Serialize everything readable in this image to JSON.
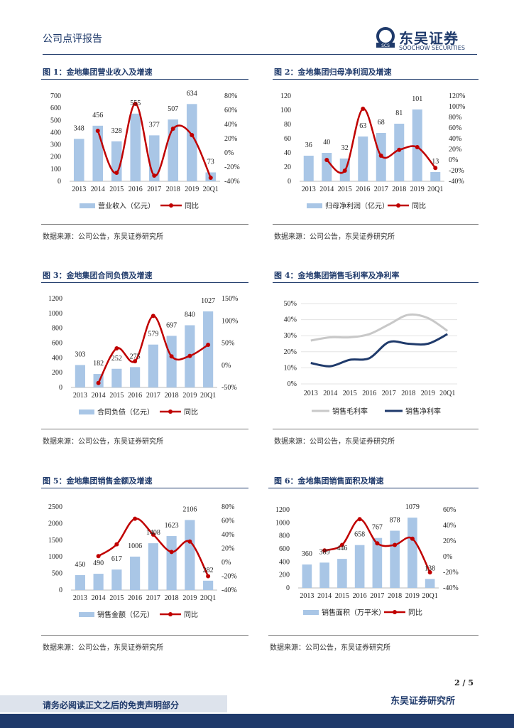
{
  "header": {
    "left": "公司点评报告",
    "logo_cn": "东吴证券",
    "logo_en": "SOOCHOW SECURITIES",
    "logo_mark": "SCS"
  },
  "colors": {
    "bar": "#a9c6e6",
    "line": "#c00000",
    "gross": "#c8c8c8",
    "net": "#1f3a6b",
    "brand": "#1f3a6b"
  },
  "footer": {
    "page": "2 / 5",
    "disclaimer": "请务必阅读正文之后的免责声明部分",
    "company": "东吴证券研究所"
  },
  "figures": [
    {
      "title": "图 1：金地集团营业收入及增速",
      "source": "数据来源：公司公告，东吴证券研究所"
    },
    {
      "title": "图 2：金地集团归母净利润及增速",
      "source": "数据来源：公司公告，东吴证券研究所"
    },
    {
      "title": "图 3：金地集团合同负债及增速",
      "source": "数据来源：公司公告，东吴证券研究所"
    },
    {
      "title": "图 4：金地集团销售毛利率及净利率",
      "source": "数据来源：公司公告，东吴证券研究所"
    },
    {
      "title": "图 5：金地集团销售金额及增速",
      "source": "数据来源：公司公告，东吴证券研究所"
    },
    {
      "title": "图 6：金地集团销售面积及增速",
      "source": "数据来源：公司公告，东吴证券研究所"
    }
  ],
  "chart_data": [
    {
      "type": "bar",
      "categories": [
        "2013",
        "2014",
        "2015",
        "2016",
        "2017",
        "2018",
        "2019",
        "20Q1"
      ],
      "series": [
        {
          "name": "营业收入（亿元）",
          "kind": "bar",
          "values": [
            348,
            456,
            328,
            555,
            377,
            507,
            634,
            73
          ]
        },
        {
          "name": "同比",
          "kind": "line",
          "axis": "right",
          "values": [
            null,
            31,
            -28,
            69,
            -32,
            34,
            25,
            -35
          ]
        }
      ],
      "ylim": [
        0,
        700
      ],
      "yticks": [
        0,
        100,
        200,
        300,
        400,
        500,
        600,
        700
      ],
      "y2lim": [
        -40,
        80
      ],
      "y2ticks": [
        "-40%",
        "-20%",
        "0%",
        "20%",
        "40%",
        "60%",
        "80%"
      ]
    },
    {
      "type": "bar",
      "categories": [
        "2013",
        "2014",
        "2015",
        "2016",
        "2017",
        "2018",
        "2019",
        "20Q1"
      ],
      "series": [
        {
          "name": "归母净利润（亿元）",
          "kind": "bar",
          "values": [
            36,
            40,
            32,
            63,
            68,
            81,
            101,
            13
          ]
        },
        {
          "name": "同比",
          "kind": "line",
          "axis": "right",
          "values": [
            null,
            0,
            -20,
            96,
            8,
            19,
            24,
            -15
          ]
        }
      ],
      "ylim": [
        0,
        120
      ],
      "yticks": [
        0,
        20,
        40,
        60,
        80,
        100,
        120
      ],
      "y2lim": [
        -40,
        120
      ],
      "y2ticks": [
        "-40%",
        "-20%",
        "0%",
        "20%",
        "40%",
        "60%",
        "80%",
        "100%",
        "120%"
      ]
    },
    {
      "type": "bar",
      "categories": [
        "2013",
        "2014",
        "2015",
        "2016",
        "2017",
        "2018",
        "2019",
        "20Q1"
      ],
      "series": [
        {
          "name": "合同负债（亿元）",
          "kind": "bar",
          "values": [
            303,
            182,
            252,
            275,
            579,
            697,
            840,
            1027
          ]
        },
        {
          "name": "同比",
          "kind": "line",
          "axis": "right",
          "values": [
            null,
            -40,
            38,
            9,
            111,
            20,
            21,
            46
          ]
        }
      ],
      "ylim": [
        0,
        1200
      ],
      "yticks": [
        0,
        200,
        400,
        600,
        800,
        1000,
        1200
      ],
      "y2lim": [
        -50,
        150
      ],
      "y2ticks": [
        "-50%",
        "0%",
        "50%",
        "100%",
        "150%"
      ]
    },
    {
      "type": "line",
      "categories": [
        "2013",
        "2014",
        "2015",
        "2016",
        "2017",
        "2018",
        "2019",
        "20Q1"
      ],
      "series": [
        {
          "name": "销售毛利率",
          "values": [
            27,
            29,
            29,
            31,
            37,
            43,
            41,
            33
          ]
        },
        {
          "name": "销售净利率",
          "values": [
            13,
            11,
            15,
            16,
            26,
            25,
            25,
            31
          ]
        }
      ],
      "ylim": [
        0,
        50
      ],
      "yticks": [
        "0%",
        "10%",
        "20%",
        "30%",
        "40%",
        "50%"
      ]
    },
    {
      "type": "bar",
      "categories": [
        "2013",
        "2014",
        "2015",
        "2016",
        "2017",
        "2018",
        "2019",
        "20Q1"
      ],
      "series": [
        {
          "name": "销售金额（亿元）",
          "kind": "bar",
          "values": [
            450,
            490,
            617,
            1006,
            1408,
            1623,
            2106,
            282
          ]
        },
        {
          "name": "同比",
          "kind": "line",
          "axis": "right",
          "values": [
            null,
            9,
            26,
            63,
            40,
            15,
            30,
            -20
          ]
        }
      ],
      "ylim": [
        0,
        2500
      ],
      "yticks": [
        0,
        500,
        1000,
        1500,
        2000,
        2500
      ],
      "y2lim": [
        -40,
        80
      ],
      "y2ticks": [
        "-40%",
        "-20%",
        "0%",
        "20%",
        "40%",
        "60%",
        "80%"
      ]
    },
    {
      "type": "bar",
      "categories": [
        "2013",
        "2014",
        "2015",
        "2016",
        "2017",
        "2018",
        "2019",
        "20Q1"
      ],
      "series": [
        {
          "name": "销售面积（万平米）",
          "kind": "bar",
          "values": [
            360,
            389,
            446,
            658,
            767,
            878,
            1079,
            138
          ]
        },
        {
          "name": "同比",
          "kind": "line",
          "axis": "right",
          "values": [
            null,
            8,
            15,
            48,
            17,
            15,
            23,
            -20
          ]
        }
      ],
      "ylim": [
        0,
        1200
      ],
      "yticks": [
        0,
        200,
        400,
        600,
        800,
        1000,
        1200
      ],
      "y2lim": [
        -40,
        60
      ],
      "y2ticks": [
        "-40%",
        "-20%",
        "0%",
        "20%",
        "40%",
        "60%"
      ]
    }
  ]
}
